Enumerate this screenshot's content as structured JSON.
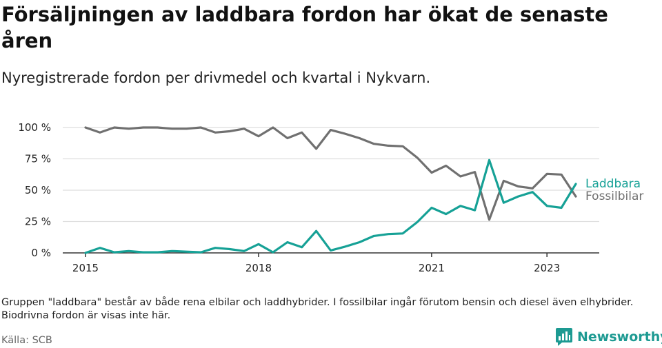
{
  "title": "Försäljningen av laddbara fordon har ökat de senaste åren",
  "subtitle": "Nyregistrerade fordon per drivmedel och kvartal i Nykvarn.",
  "note": "Gruppen \"laddbara\" består av både rena elbilar och laddhybrider. I fossilbilar ingår förutom bensin och diesel även elhybrider. Biodrivna fordon är visas inte här.",
  "source": "Källa: SCB",
  "brand": "Newsworthy",
  "colors": {
    "laddbara": "#16a196",
    "fossilbilar": "#707070",
    "grid": "#dddddd",
    "axis": "#333333"
  },
  "chart_data": {
    "type": "line",
    "title": "Försäljningen av laddbara fordon har ökat de senaste åren",
    "xlabel": "",
    "ylabel": "",
    "x": [
      "2015 Q1",
      "2015 Q2",
      "2015 Q3",
      "2015 Q4",
      "2016 Q1",
      "2016 Q2",
      "2016 Q3",
      "2016 Q4",
      "2017 Q1",
      "2017 Q2",
      "2017 Q3",
      "2017 Q4",
      "2018 Q1",
      "2018 Q2",
      "2018 Q3",
      "2018 Q4",
      "2019 Q1",
      "2019 Q2",
      "2019 Q3",
      "2019 Q4",
      "2020 Q1",
      "2020 Q2",
      "2020 Q3",
      "2020 Q4",
      "2021 Q1",
      "2021 Q2",
      "2021 Q3",
      "2021 Q4",
      "2022 Q1",
      "2022 Q2",
      "2022 Q3",
      "2022 Q4",
      "2023 Q1",
      "2023 Q2",
      "2023 Q3"
    ],
    "xticks": [
      "2015",
      "2018",
      "2021",
      "2023"
    ],
    "xtick_index": [
      0,
      12,
      24,
      32
    ],
    "ylim": [
      0,
      100
    ],
    "yticks": [
      0,
      25,
      50,
      75,
      100
    ],
    "ytick_labels": [
      "0 %",
      "25 %",
      "50 %",
      "75 %",
      "100 %"
    ],
    "series": [
      {
        "name": "Laddbara",
        "values": [
          0,
          4,
          0.5,
          1.5,
          0.5,
          0.5,
          1.5,
          1,
          0.5,
          4,
          3,
          1.5,
          7,
          0.5,
          8.5,
          4.5,
          17.5,
          2,
          5,
          8.5,
          13.5,
          15,
          15.5,
          24.5,
          36,
          31,
          37.5,
          34,
          74,
          40,
          45,
          48.5,
          37.5,
          36,
          55
        ]
      },
      {
        "name": "Fossilbilar",
        "values": [
          100,
          96,
          100,
          99,
          100,
          100,
          99,
          99,
          100,
          96,
          97,
          99,
          93,
          100,
          91.5,
          96,
          83,
          98,
          95,
          91.5,
          87,
          85.5,
          85,
          76,
          64,
          69.5,
          61,
          64.5,
          26.5,
          57.5,
          53,
          51.5,
          63,
          62.5,
          45
        ]
      }
    ],
    "legend_placement": "right"
  }
}
